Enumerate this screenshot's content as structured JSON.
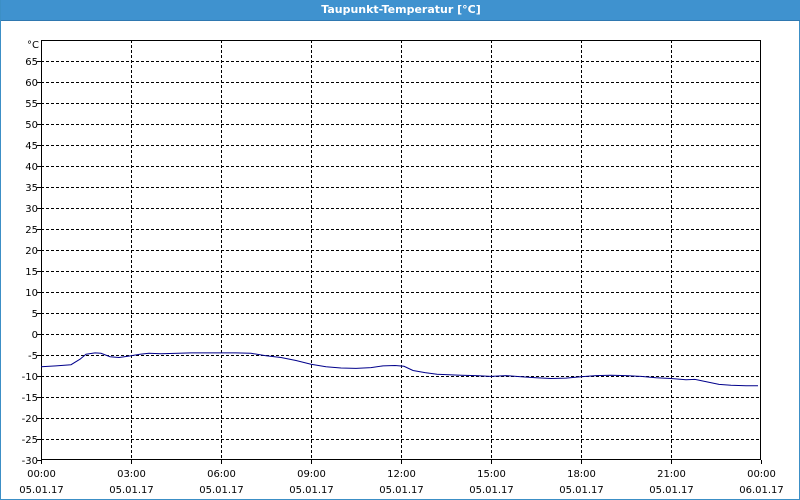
{
  "window": {
    "title": "Taupunkt-Temperatur [°C]"
  },
  "chart_data": {
    "type": "line",
    "title": "Taupunkt-Temperatur [°C]",
    "ylabel": "°C",
    "xlabel": "",
    "ylim": [
      -30,
      70
    ],
    "xlim": [
      0,
      24
    ],
    "y_ticks": [
      65,
      60,
      55,
      50,
      45,
      40,
      35,
      30,
      25,
      20,
      15,
      10,
      5,
      0,
      -5,
      -10,
      -15,
      -20,
      -25,
      -30
    ],
    "x_ticks": [
      {
        "time": "00:00",
        "date": "05.01.17"
      },
      {
        "time": "03:00",
        "date": "05.01.17"
      },
      {
        "time": "06:00",
        "date": "05.01.17"
      },
      {
        "time": "09:00",
        "date": "05.01.17"
      },
      {
        "time": "12:00",
        "date": "05.01.17"
      },
      {
        "time": "15:00",
        "date": "05.01.17"
      },
      {
        "time": "18:00",
        "date": "05.01.17"
      },
      {
        "time": "21:00",
        "date": "05.01.17"
      },
      {
        "time": "00:00",
        "date": "06.01.17"
      }
    ],
    "grid": true,
    "series": [
      {
        "color": "#00008b",
        "x": [
          0,
          0.5,
          1.0,
          1.3,
          1.5,
          1.8,
          2.0,
          2.3,
          2.6,
          3.0,
          3.3,
          3.6,
          4.0,
          5.0,
          6.0,
          6.5,
          7.0,
          7.5,
          8.0,
          8.5,
          9.0,
          9.5,
          10.0,
          10.5,
          11.0,
          11.4,
          11.8,
          12.1,
          12.4,
          12.8,
          13.2,
          13.6,
          14.0,
          14.5,
          15.0,
          15.5,
          16.0,
          16.5,
          17.0,
          17.5,
          18.0,
          18.5,
          19.0,
          19.5,
          20.0,
          20.5,
          21.0,
          21.5,
          21.8,
          22.2,
          22.6,
          23.0,
          23.5,
          23.9
        ],
        "values": [
          -7.8,
          -7.6,
          -7.3,
          -6.0,
          -4.8,
          -4.5,
          -4.6,
          -5.4,
          -5.6,
          -5.2,
          -4.8,
          -4.6,
          -4.7,
          -4.5,
          -4.5,
          -4.5,
          -4.6,
          -5.2,
          -5.6,
          -6.3,
          -7.2,
          -7.8,
          -8.1,
          -8.2,
          -8.0,
          -7.6,
          -7.5,
          -7.7,
          -8.7,
          -9.2,
          -9.6,
          -9.7,
          -9.8,
          -9.9,
          -10.1,
          -9.9,
          -10.2,
          -10.4,
          -10.6,
          -10.5,
          -10.2,
          -9.9,
          -9.8,
          -9.9,
          -10.1,
          -10.4,
          -10.6,
          -10.9,
          -10.8,
          -11.4,
          -12.0,
          -12.2,
          -12.3,
          -12.3
        ]
      }
    ]
  }
}
